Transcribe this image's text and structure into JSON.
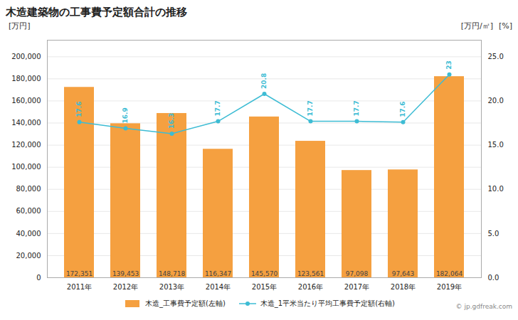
{
  "chart_data": {
    "type": "bar",
    "title": "木造建築物の工事費予定額合計の推移",
    "categories": [
      "2011年",
      "2012年",
      "2013年",
      "2014年",
      "2015年",
      "2016年",
      "2017年",
      "2018年",
      "2019年"
    ],
    "series": [
      {
        "name": "木造_工事費予定額(左軸)",
        "type": "bar",
        "color": "#F5A040",
        "values": [
          172351,
          139453,
          148718,
          116347,
          145570,
          123561,
          97098,
          97643,
          182064
        ],
        "value_labels": [
          "172,351",
          "139,453",
          "148,718",
          "116,347",
          "145,570",
          "123,561",
          "97,098",
          "97,643",
          "182,064"
        ]
      },
      {
        "name": "木造_1平米当たり平均工事費予定額(右軸)",
        "type": "line",
        "axis": "y2",
        "color": "#3DBCD4",
        "marker": "circle",
        "values": [
          17.6,
          16.9,
          16.3,
          17.7,
          20.8,
          17.7,
          17.7,
          17.6,
          23.0
        ],
        "value_labels": [
          "17.6",
          "16.9",
          "16.3",
          "17.7",
          "20.8",
          "17.7",
          "17.7",
          "17.6",
          "23"
        ]
      }
    ],
    "ylabel": "[万円]",
    "y2label": "[万円/㎡]",
    "annotations": [
      "[%]",
      "© jp.gdfreak.com"
    ],
    "ylim": [
      0,
      215000
    ],
    "yticks": [
      0,
      {
        "value": 20000,
        "label": "20,000"
      },
      {
        "value": 40000,
        "label": "40,000"
      },
      {
        "value": 60000,
        "label": "60,000"
      },
      {
        "value": 80000,
        "label": "80,000"
      },
      {
        "value": 100000,
        "label": "100,000"
      },
      {
        "value": 120000,
        "label": "120,000"
      },
      {
        "value": 140000,
        "label": "140,000"
      },
      {
        "value": 160000,
        "label": "160,000"
      },
      {
        "value": 180000,
        "label": "180,000"
      },
      {
        "value": 200000,
        "label": "200,000"
      }
    ],
    "y2lim": [
      0,
      26.875
    ],
    "y2ticks": [
      {
        "value": 0,
        "label": "0.0"
      },
      {
        "value": 5,
        "label": "5.0"
      },
      {
        "value": 10,
        "label": "10.0"
      },
      {
        "value": 15,
        "label": "15.0"
      },
      {
        "value": 20,
        "label": "20.0"
      },
      {
        "value": 25,
        "label": "25.0"
      }
    ],
    "grid": true,
    "legend": "bottom",
    "data_labels": true
  }
}
